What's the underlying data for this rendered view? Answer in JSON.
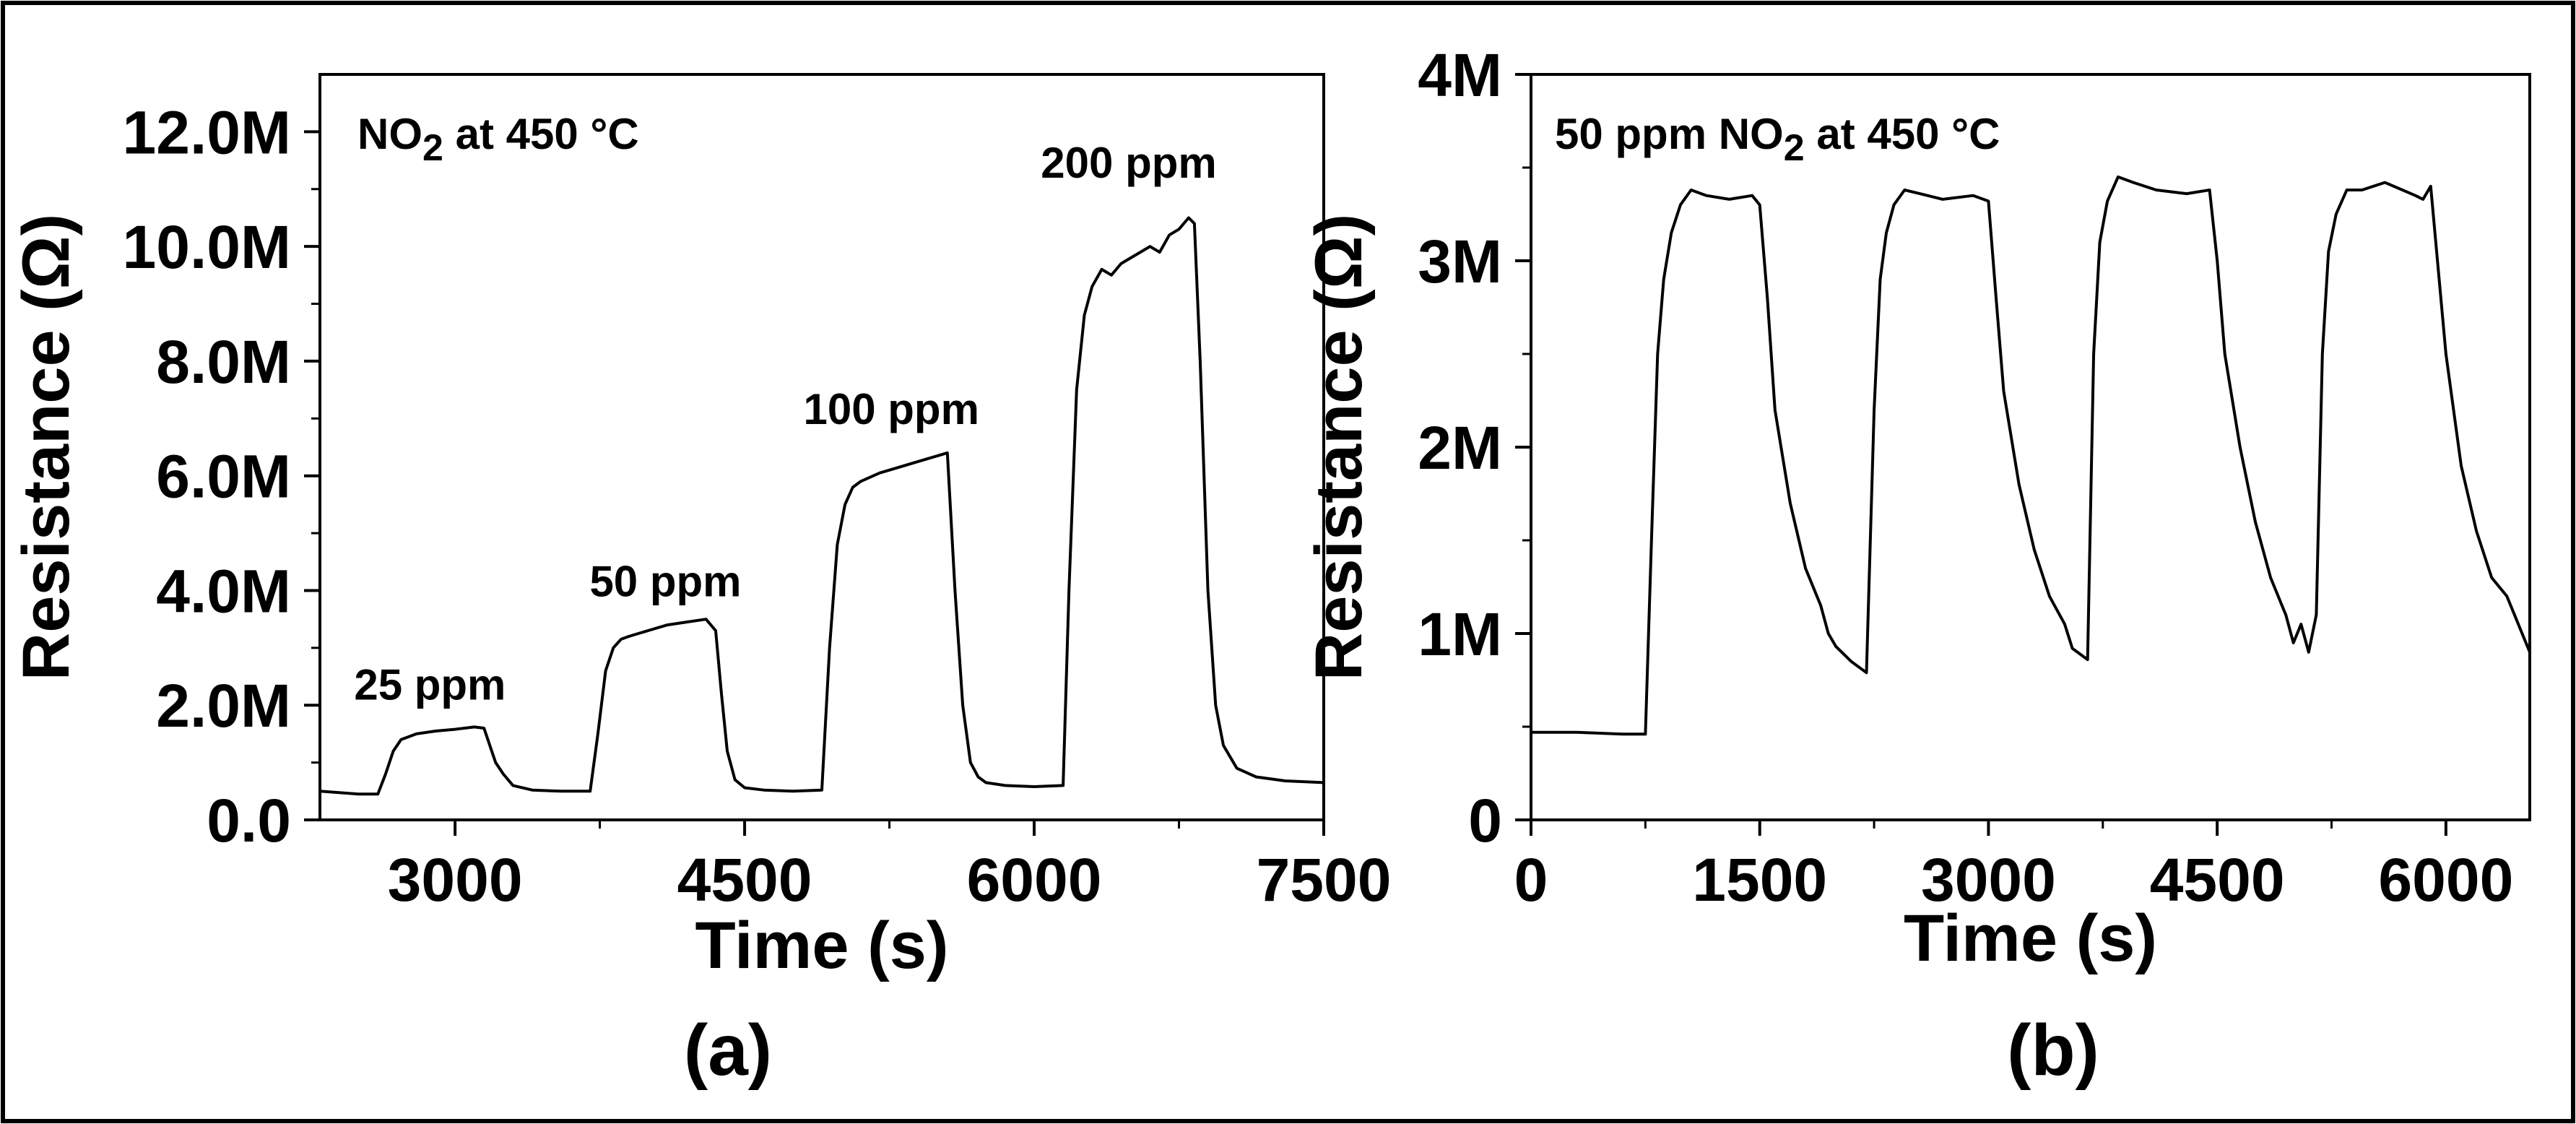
{
  "chart_data": [
    {
      "panel": "(a)",
      "type": "line",
      "title_prefix": "NO",
      "title_sub": "2",
      "title_suffix": " at 450 °C",
      "xlabel": "Time (s)",
      "ylabel": "Resistance (Ω)",
      "xlim": [
        2300,
        7500
      ],
      "ylim": [
        0,
        13000000
      ],
      "x_ticks": [
        3000,
        4500,
        6000,
        7500
      ],
      "x_tick_labels": [
        "3000",
        "4500",
        "6000",
        "7500"
      ],
      "y_ticks": [
        0,
        2000000,
        4000000,
        6000000,
        8000000,
        10000000,
        12000000
      ],
      "y_tick_labels": [
        "0.0",
        "2.0M",
        "4.0M",
        "6.0M",
        "8.0M",
        "10.0M",
        "12.0M"
      ],
      "annotations": [
        {
          "text": "25 ppm",
          "x": 2870,
          "y": 2100000
        },
        {
          "text": "50 ppm",
          "x": 4090,
          "y": 3900000
        },
        {
          "text": "100 ppm",
          "x": 5260,
          "y": 6900000
        },
        {
          "text": "200 ppm",
          "x": 6490,
          "y": 11200000
        }
      ],
      "series": [
        {
          "name": "NO2 at 450 °C",
          "x": [
            2300,
            2500,
            2600,
            2640,
            2680,
            2720,
            2800,
            2900,
            3000,
            3100,
            3150,
            3180,
            3210,
            3250,
            3300,
            3400,
            3550,
            3700,
            3740,
            3780,
            3820,
            3860,
            3900,
            4000,
            4100,
            4200,
            4300,
            4350,
            4380,
            4410,
            4450,
            4500,
            4600,
            4750,
            4900,
            4940,
            4980,
            5020,
            5060,
            5100,
            5200,
            5300,
            5400,
            5500,
            5550,
            5590,
            5630,
            5670,
            5710,
            5750,
            5850,
            6000,
            6150,
            6180,
            6220,
            6260,
            6300,
            6350,
            6400,
            6450,
            6500,
            6550,
            6600,
            6650,
            6700,
            6750,
            6800,
            6830,
            6860,
            6900,
            6940,
            6980,
            7050,
            7150,
            7300,
            7500
          ],
          "y": [
            500000,
            450000,
            450000,
            800000,
            1200000,
            1400000,
            1500000,
            1550000,
            1580000,
            1620000,
            1600000,
            1300000,
            1000000,
            800000,
            600000,
            520000,
            500000,
            500000,
            1500000,
            2600000,
            3000000,
            3150000,
            3200000,
            3300000,
            3400000,
            3450000,
            3500000,
            3300000,
            2200000,
            1200000,
            700000,
            560000,
            520000,
            500000,
            520000,
            3000000,
            4800000,
            5500000,
            5800000,
            5900000,
            6050000,
            6150000,
            6250000,
            6350000,
            6400000,
            4000000,
            2000000,
            1000000,
            750000,
            650000,
            600000,
            580000,
            600000,
            4000000,
            7500000,
            8800000,
            9300000,
            9600000,
            9500000,
            9700000,
            9800000,
            9900000,
            10000000,
            9900000,
            10200000,
            10300000,
            10500000,
            10400000,
            8000000,
            4000000,
            2000000,
            1300000,
            900000,
            750000,
            680000,
            650000
          ]
        }
      ]
    },
    {
      "panel": "(b)",
      "type": "line",
      "title_prefix": "50 ppm NO",
      "title_sub": "2",
      "title_suffix": " at 450 °C",
      "xlabel": "Time (s)",
      "ylabel": "Resistance (Ω)",
      "xlim": [
        0,
        6550
      ],
      "ylim": [
        0,
        4000000
      ],
      "x_ticks": [
        0,
        1500,
        3000,
        4500,
        6000
      ],
      "x_tick_labels": [
        "0",
        "1500",
        "3000",
        "4500",
        "6000"
      ],
      "y_ticks": [
        0,
        1000000,
        2000000,
        3000000,
        4000000
      ],
      "y_tick_labels": [
        "0",
        "1M",
        "2M",
        "3M",
        "4M"
      ],
      "annotations": [],
      "series": [
        {
          "name": "50 ppm NO2 at 450 °C",
          "x": [
            0,
            300,
            600,
            750,
            790,
            830,
            870,
            920,
            980,
            1050,
            1150,
            1300,
            1450,
            1500,
            1550,
            1600,
            1700,
            1800,
            1900,
            1950,
            2000,
            2100,
            2200,
            2250,
            2290,
            2330,
            2380,
            2450,
            2550,
            2700,
            2900,
            3000,
            3050,
            3100,
            3200,
            3300,
            3400,
            3500,
            3550,
            3650,
            3690,
            3730,
            3780,
            3850,
            3950,
            4100,
            4300,
            4450,
            4500,
            4550,
            4650,
            4750,
            4850,
            4950,
            5000,
            5050,
            5100,
            5150,
            5190,
            5230,
            5280,
            5350,
            5450,
            5600,
            5800,
            5850,
            5900,
            6000,
            6100,
            6200,
            6300,
            6400,
            6450,
            6500,
            6550
          ],
          "y": [
            470000,
            470000,
            460000,
            460000,
            1500000,
            2500000,
            2900000,
            3150000,
            3300000,
            3380000,
            3350000,
            3330000,
            3350000,
            3300000,
            2800000,
            2200000,
            1700000,
            1350000,
            1150000,
            1000000,
            930000,
            850000,
            790000,
            2200000,
            2900000,
            3150000,
            3300000,
            3380000,
            3360000,
            3330000,
            3350000,
            3320000,
            2800000,
            2300000,
            1800000,
            1450000,
            1200000,
            1050000,
            920000,
            860000,
            2500000,
            3100000,
            3320000,
            3450000,
            3420000,
            3380000,
            3360000,
            3380000,
            3000000,
            2500000,
            2000000,
            1600000,
            1300000,
            1100000,
            950000,
            1050000,
            900000,
            1100000,
            2500000,
            3050000,
            3250000,
            3380000,
            3380000,
            3420000,
            3350000,
            3330000,
            3400000,
            2500000,
            1900000,
            1550000,
            1300000,
            1200000,
            1100000,
            1000000,
            900000
          ]
        }
      ]
    }
  ]
}
